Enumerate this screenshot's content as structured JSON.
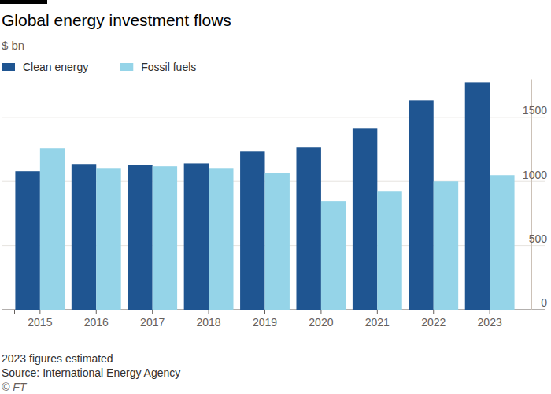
{
  "chart_data": {
    "type": "bar",
    "title": "Global energy investment flows",
    "subtitle": "$ bn",
    "categories": [
      "2015",
      "2016",
      "2017",
      "2018",
      "2019",
      "2020",
      "2021",
      "2022",
      "2023"
    ],
    "series": [
      {
        "name": "Clean energy",
        "color": "#1f5591",
        "values": [
          1080,
          1135,
          1130,
          1140,
          1233,
          1264,
          1411,
          1632,
          1773
        ]
      },
      {
        "name": "Fossil fuels",
        "color": "#95d4e8",
        "values": [
          1258,
          1104,
          1117,
          1104,
          1067,
          847,
          920,
          1000,
          1049
        ]
      }
    ],
    "ylim": [
      0,
      1800
    ],
    "yticks": [
      0,
      500,
      1000,
      1500
    ],
    "grid": true,
    "legend": "top-left",
    "annotations": [
      "2023 figures estimated",
      "Source: International Energy Agency",
      "© FT"
    ]
  }
}
